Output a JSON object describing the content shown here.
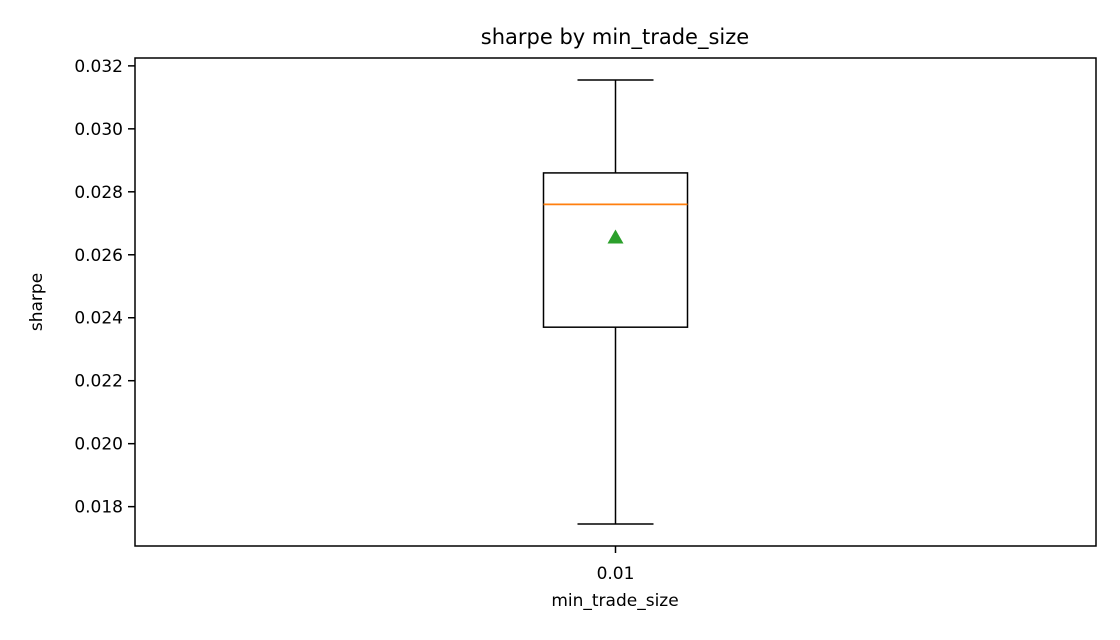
{
  "chart_data": {
    "type": "box",
    "title": "sharpe by min_trade_size",
    "xlabel": "min_trade_size",
    "ylabel": "sharpe",
    "categories": [
      "0.01"
    ],
    "ylim": [
      0.01675,
      0.03225
    ],
    "yticks": [
      0.018,
      0.02,
      0.022,
      0.024,
      0.026,
      0.028,
      0.03,
      0.032
    ],
    "ytick_labels": [
      "0.018",
      "0.020",
      "0.022",
      "0.024",
      "0.026",
      "0.028",
      "0.030",
      "0.032"
    ],
    "boxes": [
      {
        "category": "0.01",
        "whisker_low": 0.01745,
        "q1": 0.0237,
        "median": 0.0276,
        "q3": 0.0286,
        "whisker_high": 0.03155,
        "mean": 0.02655
      }
    ],
    "grid": false,
    "colors": {
      "box": "#000000",
      "median": "#ff7f0e",
      "mean": "#2ca02c"
    }
  }
}
